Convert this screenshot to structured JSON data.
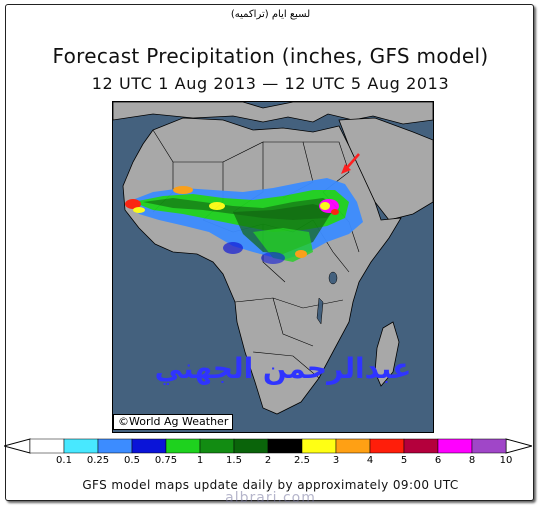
{
  "caption_ar": "لسبع ايام (تراكميه)",
  "title": "Forecast Precipitation (inches, GFS model)",
  "subtitle": "12 UTC 1 Aug 2013 — 12 UTC 5 Aug 2013",
  "copyright": "©World Ag Weather",
  "watermark_ar": "عبدالرحمن الجهني",
  "footer": "GFS model maps update daily by approximately 09:00 UTC",
  "site": "albrari.com",
  "legend": {
    "colors": [
      "#ffffff",
      "#48e8ff",
      "#3c8cff",
      "#0a14d8",
      "#1ed21e",
      "#128c12",
      "#0a640a",
      "#000000",
      "#ffff14",
      "#ffa014",
      "#ff1e0a",
      "#b4003c",
      "#ff00ff",
      "#a046c8"
    ],
    "ticks": [
      "0.1",
      "0.25",
      "0.5",
      "0.75",
      "1",
      "1.5",
      "2",
      "2.5",
      "3",
      "4",
      "5",
      "6",
      "8",
      "10"
    ]
  },
  "map_colors": {
    "ocean": "#44617e",
    "land": "#a8a8a8",
    "border": "#000000",
    "arrow": "#ff2020"
  }
}
